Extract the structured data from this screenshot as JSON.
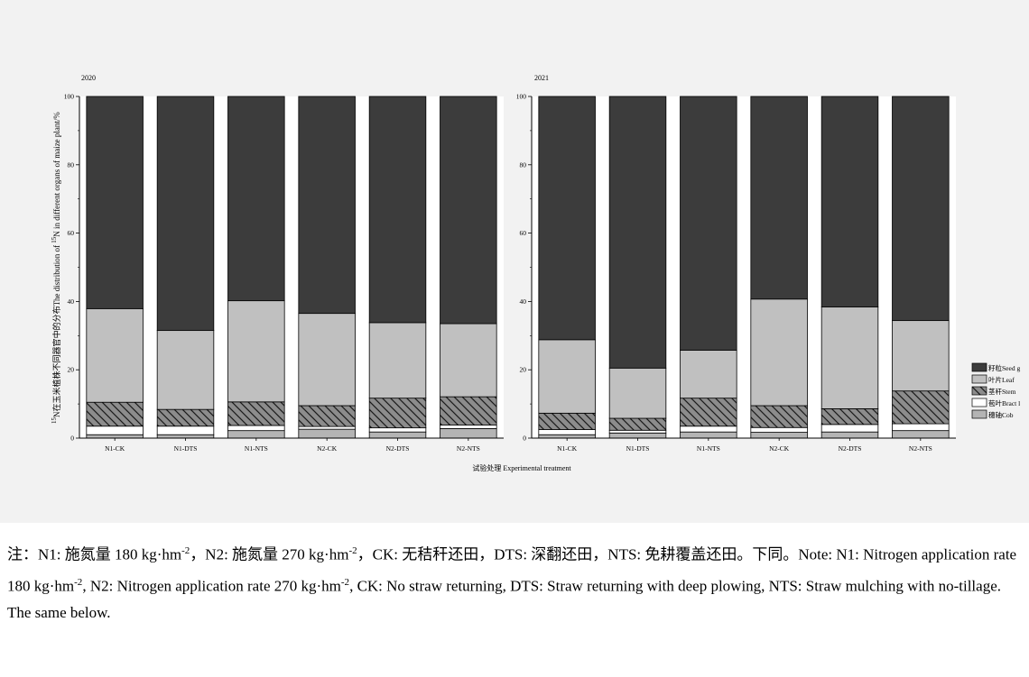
{
  "xlabel": "试验处理 Experimental treatment",
  "ylabel_sup": "15",
  "ylabel_main": "N在玉米植株不同器官中的分布The distribution of ",
  "ylabel_sup2": "15",
  "ylabel_end": "N in different organs of maize plant/%",
  "colors": {
    "seed": "#3c3c3c",
    "leaf": "#c0c0c0",
    "stem": "#808080",
    "bract": "#ffffff",
    "cob": "#b4b4b4"
  },
  "legend": [
    "籽粒Seed g",
    "叶片Leaf",
    "茎秆Stem",
    "苞叶Bract l",
    "穗轴Cob"
  ],
  "chart_data": [
    {
      "type": "bar",
      "stacked": true,
      "title": "2020",
      "categories": [
        "N1-CK",
        "N1-DTS",
        "N1-NTS",
        "N2-CK",
        "N2-DTS",
        "N2-NTS"
      ],
      "ylim": [
        0,
        100
      ],
      "yticks": [
        0,
        20,
        40,
        60,
        80,
        100
      ],
      "series": [
        {
          "name": "穗轴Cob",
          "values": [
            1.0,
            1.0,
            2.2,
            2.6,
            1.8,
            2.8
          ]
        },
        {
          "name": "苞叶Bract l",
          "values": [
            2.5,
            2.5,
            1.5,
            0.8,
            1.2,
            1.0
          ]
        },
        {
          "name": "茎秆Stem",
          "values": [
            7.0,
            4.9,
            6.9,
            6.1,
            8.7,
            8.3
          ]
        },
        {
          "name": "叶片Leaf",
          "values": [
            27.4,
            23.1,
            29.6,
            27.0,
            22.1,
            21.4
          ]
        },
        {
          "name": "籽粒Seed g",
          "values": [
            62.1,
            68.5,
            59.8,
            63.5,
            66.2,
            66.5
          ]
        }
      ]
    },
    {
      "type": "bar",
      "stacked": true,
      "title": "2021",
      "categories": [
        "N1-CK",
        "N1-DTS",
        "N1-NTS",
        "N2-CK",
        "N2-DTS",
        "N2-NTS"
      ],
      "ylim": [
        0,
        100
      ],
      "yticks": [
        0,
        20,
        40,
        60,
        80,
        100
      ],
      "series": [
        {
          "name": "穗轴Cob",
          "values": [
            1.0,
            1.5,
            1.8,
            1.7,
            1.8,
            2.2
          ]
        },
        {
          "name": "苞叶Bract l",
          "values": [
            1.5,
            0.8,
            1.7,
            1.4,
            2.2,
            2.0
          ]
        },
        {
          "name": "茎秆Stem",
          "values": [
            4.8,
            3.5,
            8.2,
            6.4,
            4.6,
            9.6
          ]
        },
        {
          "name": "叶片Leaf",
          "values": [
            21.5,
            14.7,
            14.0,
            31.2,
            29.8,
            20.6
          ]
        },
        {
          "name": "籽粒Seed g",
          "values": [
            71.2,
            79.5,
            74.3,
            59.3,
            61.6,
            65.6
          ]
        }
      ]
    }
  ],
  "note": {
    "p1": "注：N1: 施氮量 180 kg·hm",
    "s1": "-2",
    "p2": "，N2: 施氮量 270 kg·hm",
    "s2": "-2",
    "p3": "，CK: 无秸秆还田，DTS: 深翻还田，NTS: 免耕覆盖还田。下同。Note: N1: Nitrogen application rate 180 kg·hm",
    "s3": "-2",
    "p4": ", N2: Nitrogen application rate 270 kg·hm",
    "s4": "-2",
    "p5": ", CK: No straw returning, DTS: Straw returning with deep plowing, NTS: Straw mulching with no-tillage. The same below."
  }
}
